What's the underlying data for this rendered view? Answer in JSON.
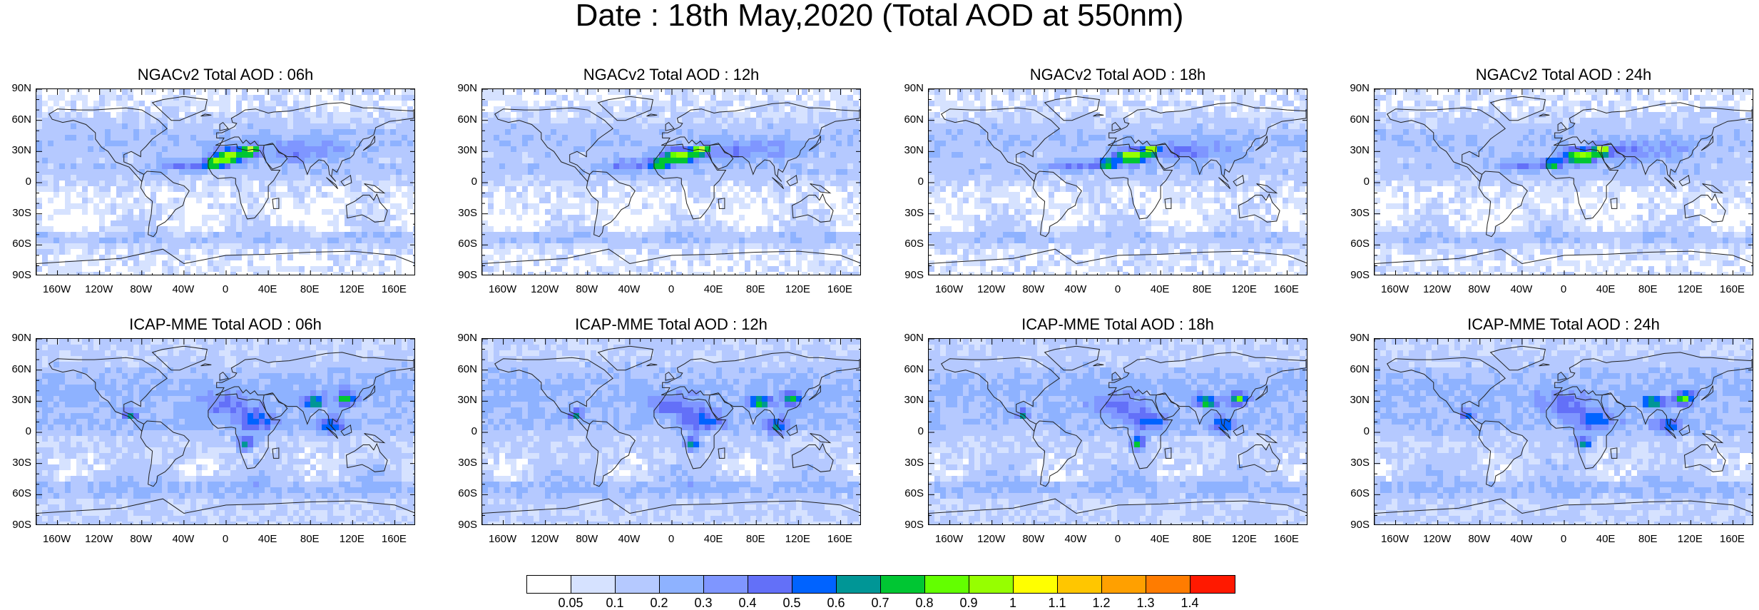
{
  "title": "Date : 18th May,2020 (Total AOD at 550nm)",
  "panels": [
    {
      "title": "NGACv2 Total AOD : 06h",
      "model": "NGACv2"
    },
    {
      "title": "NGACv2 Total AOD : 12h",
      "model": "NGACv2"
    },
    {
      "title": "NGACv2 Total AOD : 18h",
      "model": "NGACv2"
    },
    {
      "title": "NGACv2 Total AOD : 24h",
      "model": "NGACv2"
    },
    {
      "title": "ICAP-MME Total AOD : 06h",
      "model": "ICAP-MME"
    },
    {
      "title": "ICAP-MME Total AOD : 12h",
      "model": "ICAP-MME"
    },
    {
      "title": "ICAP-MME Total AOD : 18h",
      "model": "ICAP-MME"
    },
    {
      "title": "ICAP-MME Total AOD : 24h",
      "model": "ICAP-MME"
    }
  ],
  "lat_labels": [
    "90N",
    "60N",
    "30N",
    "0",
    "30S",
    "60S",
    "90S"
  ],
  "lon_labels": [
    "160W",
    "120W",
    "80W",
    "40W",
    "0",
    "40E",
    "80E",
    "120E",
    "160E"
  ],
  "colorbar": {
    "labels": [
      "0.05",
      "0.1",
      "0.2",
      "0.3",
      "0.4",
      "0.5",
      "0.6",
      "0.7",
      "0.8",
      "0.9",
      "1",
      "1.1",
      "1.2",
      "1.3",
      "1.4"
    ],
    "colors": [
      "#ffffff",
      "#d6e2ff",
      "#b5c9ff",
      "#8eb2ff",
      "#7f96ff",
      "#6370f8",
      "#0063ff",
      "#009696",
      "#00c633",
      "#63ff00",
      "#96ff00",
      "#c6ff33",
      "#ffff00",
      "#ffc600",
      "#ffa000",
      "#ff7c00",
      "#ff1900"
    ]
  }
}
